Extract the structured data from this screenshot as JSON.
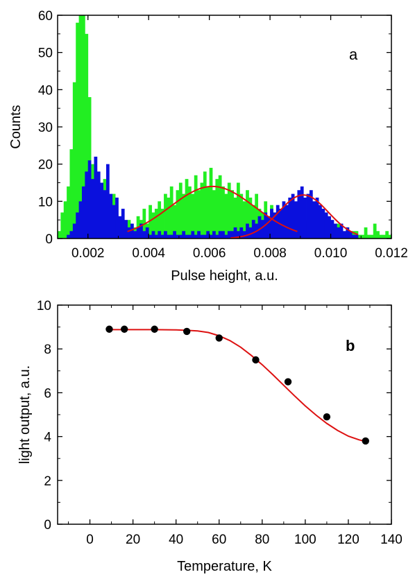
{
  "chart_data": [
    {
      "panel": "a",
      "type": "bar",
      "xlabel": "Pulse height, a.u.",
      "ylabel": "Counts",
      "xlim": [
        0.001,
        0.012
      ],
      "ylim": [
        0,
        60
      ],
      "xticks": [
        "0.002",
        "0.004",
        "0.006",
        "0.008",
        "0.010",
        "0.012"
      ],
      "yticks": [
        "0",
        "10",
        "20",
        "30",
        "40",
        "50",
        "60"
      ],
      "series": [
        {
          "color": "#22ee22",
          "x": [
            0.00105,
            0.00115,
            0.00125,
            0.00135,
            0.00145,
            0.00155,
            0.00165,
            0.00175,
            0.00185,
            0.00195,
            0.00205,
            0.00215,
            0.00225,
            0.00235,
            0.00245,
            0.00255,
            0.00265,
            0.00275,
            0.00285,
            0.00295,
            0.00305,
            0.00315,
            0.00325,
            0.00335,
            0.00345,
            0.00355,
            0.00365,
            0.00375,
            0.00385,
            0.00395,
            0.00405,
            0.00415,
            0.00425,
            0.00435,
            0.00445,
            0.00455,
            0.00465,
            0.00475,
            0.00485,
            0.00495,
            0.00505,
            0.00515,
            0.00525,
            0.00535,
            0.00545,
            0.00555,
            0.00565,
            0.00575,
            0.00585,
            0.00595,
            0.00605,
            0.00615,
            0.00625,
            0.00635,
            0.00645,
            0.00655,
            0.00665,
            0.00675,
            0.00685,
            0.00695,
            0.00705,
            0.00715,
            0.00725,
            0.00735,
            0.00745,
            0.00755,
            0.00765,
            0.00775,
            0.00785,
            0.00795,
            0.00805,
            0.00815,
            0.00825,
            0.00835,
            0.00845,
            0.00855,
            0.00865,
            0.00875,
            0.00885,
            0.00895,
            0.00905,
            0.00915,
            0.00925,
            0.00935,
            0.00945,
            0.00955,
            0.00965,
            0.00975,
            0.00985,
            0.00995,
            0.01005,
            0.01015,
            0.01025,
            0.01035,
            0.01045,
            0.01055,
            0.01065,
            0.01075,
            0.01085,
            0.01095,
            0.01105,
            0.01115,
            0.01125,
            0.01135,
            0.01145,
            0.01155,
            0.01165,
            0.01175,
            0.01185,
            0.01195
          ],
          "values": [
            2,
            7,
            10,
            14,
            24,
            42,
            58,
            60,
            60,
            55,
            38,
            20,
            18,
            12,
            8,
            16,
            5,
            9,
            12,
            6,
            4,
            5,
            3,
            5,
            4,
            3,
            6,
            5,
            8,
            4,
            9,
            7,
            8,
            10,
            8,
            12,
            11,
            14,
            9,
            13,
            15,
            12,
            16,
            14,
            12,
            17,
            13,
            15,
            18,
            14,
            19,
            13,
            16,
            17,
            14,
            12,
            15,
            13,
            11,
            15,
            12,
            10,
            13,
            11,
            9,
            12,
            8,
            7,
            10,
            6,
            9,
            7,
            5,
            8,
            6,
            4,
            7,
            5,
            3,
            6,
            4,
            5,
            2,
            4,
            3,
            5,
            2,
            4,
            1,
            3,
            2,
            1,
            4,
            2,
            1,
            3,
            1,
            2,
            2,
            1,
            1,
            3,
            1,
            1,
            4,
            2,
            1,
            1,
            2,
            1
          ]
        },
        {
          "color": "#0a10dd",
          "x": [
            0.00105,
            0.00115,
            0.00125,
            0.00135,
            0.00145,
            0.00155,
            0.00165,
            0.00175,
            0.00185,
            0.00195,
            0.00205,
            0.00215,
            0.00225,
            0.00235,
            0.00245,
            0.00255,
            0.00265,
            0.00275,
            0.00285,
            0.00295,
            0.00305,
            0.00315,
            0.00325,
            0.00335,
            0.00345,
            0.00355,
            0.00365,
            0.00375,
            0.00385,
            0.00395,
            0.00405,
            0.00415,
            0.00425,
            0.00435,
            0.00445,
            0.00455,
            0.00465,
            0.00475,
            0.00485,
            0.00495,
            0.00505,
            0.00515,
            0.00525,
            0.00535,
            0.00545,
            0.00555,
            0.00565,
            0.00575,
            0.00585,
            0.00595,
            0.00605,
            0.00615,
            0.00625,
            0.00635,
            0.00645,
            0.00655,
            0.00665,
            0.00675,
            0.00685,
            0.00695,
            0.00705,
            0.00715,
            0.00725,
            0.00735,
            0.00745,
            0.00755,
            0.00765,
            0.00775,
            0.00785,
            0.00795,
            0.00805,
            0.00815,
            0.00825,
            0.00835,
            0.00845,
            0.00855,
            0.00865,
            0.00875,
            0.00885,
            0.00895,
            0.00905,
            0.00915,
            0.00925,
            0.00935,
            0.00945,
            0.00955,
            0.00965,
            0.00975,
            0.00985,
            0.00995,
            0.01005,
            0.01015,
            0.01025,
            0.01035,
            0.01045,
            0.01055,
            0.01065,
            0.01075,
            0.01085,
            0.01095
          ],
          "values": [
            0,
            0,
            0,
            1,
            2,
            4,
            7,
            10,
            14,
            18,
            21,
            16,
            22,
            18,
            15,
            13,
            20,
            12,
            9,
            11,
            6,
            8,
            5,
            3,
            4,
            2,
            3,
            4,
            2,
            3,
            1,
            2,
            1,
            2,
            1,
            2,
            1,
            1,
            2,
            1,
            1,
            2,
            1,
            1,
            2,
            1,
            2,
            1,
            1,
            2,
            1,
            2,
            1,
            2,
            2,
            1,
            2,
            2,
            3,
            2,
            3,
            2,
            4,
            3,
            5,
            4,
            6,
            5,
            7,
            6,
            8,
            7,
            9,
            8,
            10,
            9,
            11,
            12,
            10,
            13,
            14,
            11,
            12,
            13,
            10,
            11,
            9,
            8,
            7,
            6,
            5,
            4,
            3,
            4,
            2,
            3,
            2,
            1,
            1,
            0
          ]
        }
      ],
      "fits": [
        {
          "color": "#dd1111",
          "amplitude": 14,
          "mean": 0.0061,
          "sigma": 0.0014,
          "range": [
            0.0033,
            0.0089
          ]
        },
        {
          "color": "#dd1111",
          "amplitude": 11.7,
          "mean": 0.0091,
          "sigma": 0.00082,
          "range": [
            0.0067,
            0.0109
          ]
        }
      ]
    },
    {
      "panel": "b",
      "type": "scatter",
      "xlabel": "Temperature, K",
      "ylabel": "light output, a.u.",
      "xlim": [
        -15,
        140
      ],
      "ylim": [
        0,
        10
      ],
      "xticks": [
        "0",
        "20",
        "40",
        "60",
        "80",
        "100",
        "120",
        "140"
      ],
      "yticks": [
        "0",
        "2",
        "4",
        "6",
        "8",
        "10"
      ],
      "points": {
        "x": [
          9,
          16,
          30,
          45,
          60,
          77,
          92,
          110,
          128
        ],
        "y": [
          8.9,
          8.9,
          8.9,
          8.8,
          8.5,
          7.5,
          6.5,
          4.9,
          3.8
        ]
      },
      "fit": {
        "color": "#dd1111",
        "x": [
          9,
          20,
          30,
          40,
          45,
          50,
          55,
          60,
          65,
          70,
          75,
          80,
          85,
          90,
          95,
          100,
          105,
          110,
          115,
          120,
          125,
          128
        ],
        "y": [
          8.88,
          8.88,
          8.88,
          8.87,
          8.85,
          8.82,
          8.75,
          8.6,
          8.38,
          8.08,
          7.7,
          7.28,
          6.82,
          6.34,
          5.86,
          5.4,
          4.98,
          4.6,
          4.28,
          4.02,
          3.85,
          3.78
        ]
      }
    }
  ]
}
